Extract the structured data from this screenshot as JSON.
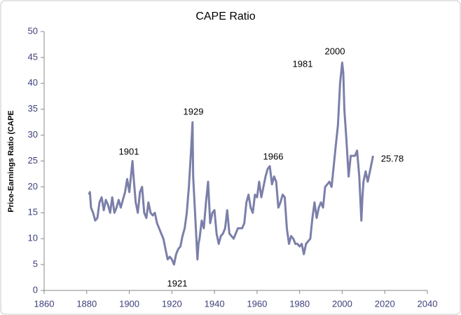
{
  "chart_data": {
    "type": "line",
    "title": "CAPE Ratio",
    "y_label": "Price-Earnings Ratio (CAPE",
    "annotations": [
      "1901",
      "1929",
      "1966",
      "1981",
      "2000",
      "1921",
      "25.78"
    ],
    "xlim": [
      1860,
      2040
    ],
    "xticks": [
      1860,
      1880,
      1900,
      1920,
      1940,
      1960,
      1980,
      2000,
      2020,
      2040
    ],
    "ylim": [
      0,
      50
    ],
    "yticks": [
      0,
      5,
      10,
      15,
      20,
      25,
      30,
      35,
      40,
      45,
      50
    ],
    "grid": false,
    "series": [
      {
        "color": "#7b7fa9",
        "x": [
          1881,
          1881.5,
          1882,
          1883,
          1884,
          1885,
          1886,
          1887,
          1888,
          1889,
          1890,
          1891,
          1892,
          1893,
          1894,
          1895,
          1896,
          1897,
          1898,
          1899,
          1900,
          1901,
          1901.5,
          1902,
          1903,
          1904,
          1905,
          1906,
          1907,
          1908,
          1909,
          1910,
          1911,
          1912,
          1913,
          1914,
          1915,
          1916,
          1917,
          1918,
          1919,
          1920,
          1921,
          1922,
          1923,
          1924,
          1925,
          1926,
          1927,
          1928,
          1929,
          1929.7,
          1930,
          1931,
          1932,
          1932.5,
          1933,
          1934,
          1935,
          1936,
          1937,
          1938,
          1939,
          1940,
          1941,
          1942,
          1943,
          1944,
          1945,
          1946,
          1947,
          1948,
          1949,
          1950,
          1951,
          1952,
          1953,
          1954,
          1955,
          1956,
          1957,
          1958,
          1959,
          1960,
          1961,
          1962,
          1963,
          1964,
          1965,
          1966,
          1967,
          1968,
          1969,
          1970,
          1971,
          1972,
          1973,
          1974,
          1975,
          1976,
          1977,
          1978,
          1979,
          1980,
          1981,
          1982,
          1983,
          1984,
          1985,
          1986,
          1987,
          1988,
          1989,
          1990,
          1991,
          1992,
          1993,
          1994,
          1995,
          1996,
          1997,
          1998,
          1999,
          2000,
          2000.5,
          2001,
          2002,
          2003,
          2004,
          2005,
          2006,
          2007,
          2008,
          2009,
          2009.5,
          2010,
          2011,
          2012,
          2013,
          2014,
          2014.5
        ],
        "values": [
          18.5,
          19,
          16,
          15,
          13.5,
          14,
          17,
          18,
          15.5,
          17.5,
          16.5,
          15,
          18,
          15,
          16,
          17.5,
          16,
          17.5,
          19,
          21.5,
          19,
          23,
          25,
          22,
          17,
          15,
          19,
          20,
          15,
          14,
          17,
          15,
          14.5,
          15,
          13,
          12,
          11,
          10,
          8,
          6,
          6.5,
          6,
          5,
          7,
          8,
          8.5,
          10.5,
          12,
          15,
          20,
          27,
          32.5,
          22,
          14,
          6,
          9,
          10,
          13.5,
          12,
          17,
          21,
          13,
          15,
          15.5,
          11,
          9,
          10.5,
          11,
          12,
          15.5,
          11,
          10.5,
          10,
          11,
          12,
          12,
          12,
          13,
          17,
          18.5,
          16,
          15,
          18.5,
          18,
          21,
          18,
          20,
          22,
          23.5,
          24,
          20.5,
          22,
          21,
          16,
          17,
          18.5,
          18,
          12,
          9,
          10.5,
          10,
          9,
          9,
          8.5,
          9,
          7,
          9,
          9.5,
          10,
          14,
          17,
          14,
          16,
          17,
          16,
          20,
          20.5,
          21,
          20,
          24,
          28,
          32,
          40,
          44,
          42,
          35,
          29,
          22,
          26,
          26,
          26,
          27,
          22,
          13.5,
          18,
          21,
          23,
          21,
          23,
          25,
          26
        ]
      }
    ]
  }
}
